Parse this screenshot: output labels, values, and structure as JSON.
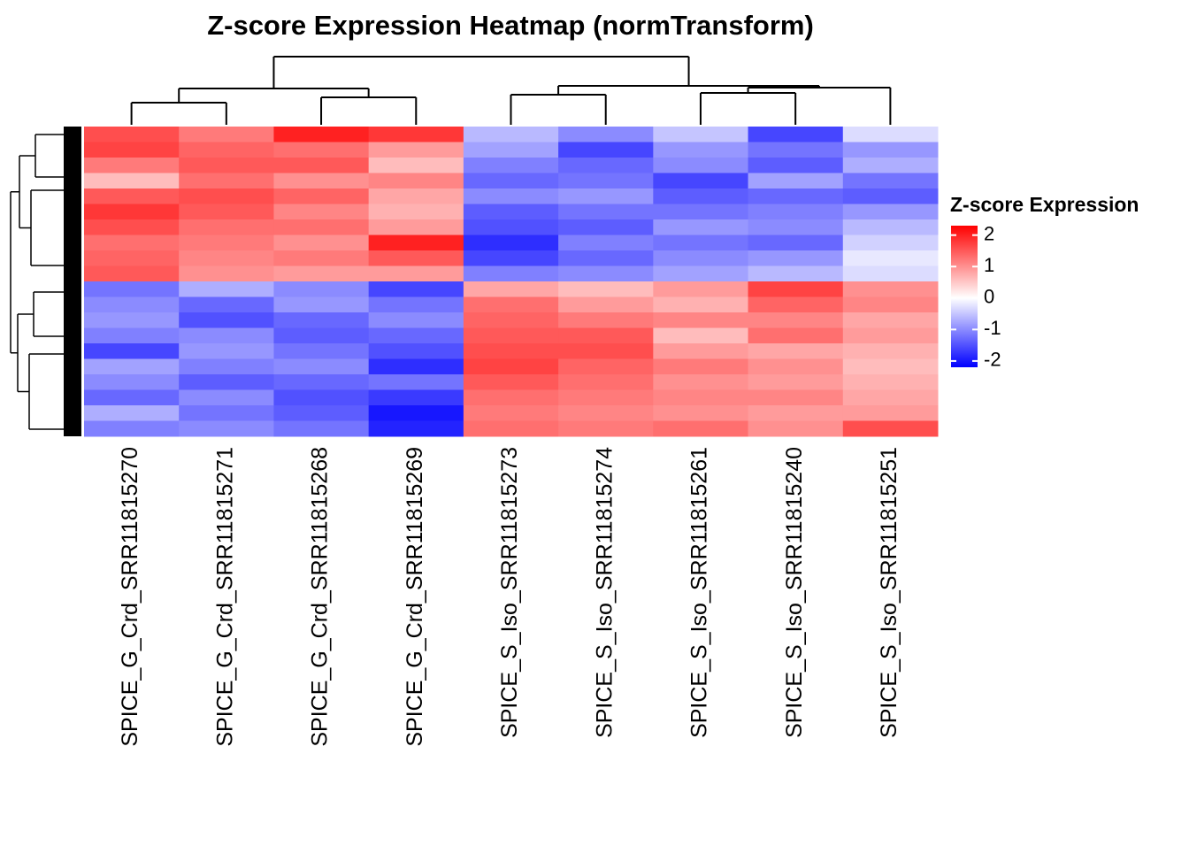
{
  "chart_data": {
    "type": "heatmap",
    "title": "Z-score Expression Heatmap (normTransform)",
    "categories": [
      "SPICE_G_Crd_SRR11815270",
      "SPICE_G_Crd_SRR11815271",
      "SPICE_G_Crd_SRR11815268",
      "SPICE_G_Crd_SRR11815269",
      "SPICE_S_Iso_SRR11815273",
      "SPICE_S_Iso_SRR11815274",
      "SPICE_S_Iso_SRR11815261",
      "SPICE_S_Iso_SRR11815240",
      "SPICE_S_Iso_SRR11815251"
    ],
    "values": [
      [
        1.6,
        1.2,
        2.0,
        1.8,
        -0.6,
        -1.0,
        -0.5,
        -1.6,
        -0.3
      ],
      [
        1.7,
        1.4,
        1.3,
        0.9,
        -0.8,
        -1.6,
        -0.9,
        -1.2,
        -0.9
      ],
      [
        1.2,
        1.5,
        1.5,
        0.6,
        -1.1,
        -1.3,
        -1.0,
        -1.4,
        -0.7
      ],
      [
        0.6,
        1.3,
        1.0,
        1.1,
        -1.3,
        -1.2,
        -1.6,
        -0.8,
        -1.2
      ],
      [
        1.5,
        1.6,
        1.4,
        0.8,
        -1.0,
        -0.9,
        -1.4,
        -1.3,
        -1.4
      ],
      [
        1.8,
        1.5,
        1.1,
        0.7,
        -1.4,
        -1.2,
        -1.2,
        -1.1,
        -0.9
      ],
      [
        1.6,
        1.3,
        1.3,
        0.9,
        -1.5,
        -1.4,
        -0.9,
        -1.0,
        -0.6
      ],
      [
        1.3,
        1.2,
        1.0,
        2.0,
        -1.8,
        -1.1,
        -1.2,
        -1.3,
        -0.4
      ],
      [
        1.4,
        1.1,
        1.2,
        1.5,
        -1.6,
        -1.3,
        -1.0,
        -0.9,
        -0.2
      ],
      [
        1.5,
        1.0,
        0.9,
        0.9,
        -1.1,
        -1.0,
        -0.8,
        -0.6,
        -0.3
      ],
      [
        -1.2,
        -0.7,
        -1.0,
        -1.6,
        0.8,
        0.6,
        0.9,
        1.7,
        1.0
      ],
      [
        -1.0,
        -1.3,
        -0.9,
        -1.2,
        1.3,
        0.9,
        0.7,
        1.4,
        1.1
      ],
      [
        -0.9,
        -1.5,
        -1.3,
        -1.0,
        1.4,
        1.2,
        1.1,
        1.1,
        0.8
      ],
      [
        -1.1,
        -1.0,
        -1.4,
        -1.3,
        1.5,
        1.5,
        0.6,
        1.3,
        0.9
      ],
      [
        -1.6,
        -0.9,
        -1.2,
        -1.5,
        1.6,
        1.6,
        0.9,
        0.8,
        0.7
      ],
      [
        -0.8,
        -1.1,
        -1.0,
        -1.8,
        1.7,
        1.4,
        1.2,
        1.0,
        0.6
      ],
      [
        -1.0,
        -1.4,
        -1.3,
        -1.2,
        1.5,
        1.3,
        1.0,
        0.9,
        0.7
      ],
      [
        -1.3,
        -1.0,
        -1.5,
        -1.7,
        1.3,
        1.2,
        1.1,
        1.1,
        0.8
      ],
      [
        -0.7,
        -1.2,
        -1.4,
        -2.0,
        1.2,
        1.1,
        1.0,
        0.9,
        0.9
      ],
      [
        -1.1,
        -1.0,
        -1.2,
        -1.9,
        1.3,
        1.2,
        1.3,
        1.0,
        1.6
      ]
    ],
    "colors": [
      "#0000ff",
      "#ffffff",
      "#ff0000"
    ],
    "legend": {
      "title": "Z-score Expression",
      "lim": [
        -2.2,
        2.3
      ],
      "ticks": [
        -2,
        -1,
        0,
        1,
        2
      ]
    }
  }
}
